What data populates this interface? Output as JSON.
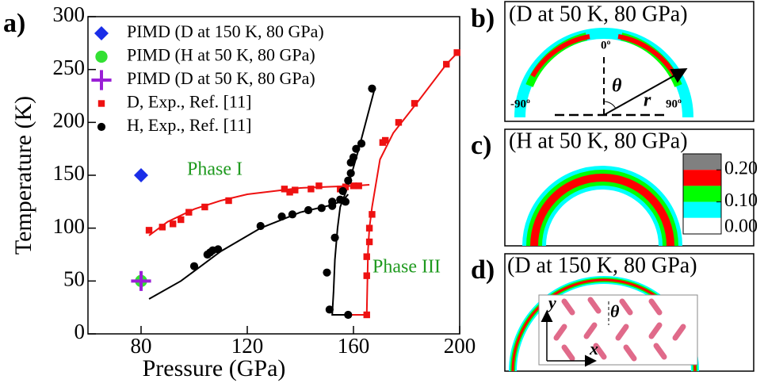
{
  "chart_data": {
    "type": "scatter",
    "panel_label": "a)",
    "xlabel": "Pressure (GPa)",
    "ylabel": "Temperature (K)",
    "xlim": [
      60,
      200
    ],
    "ylim": [
      0,
      300
    ],
    "xticks": [
      80,
      120,
      160,
      200
    ],
    "yticks": [
      0,
      50,
      100,
      150,
      200,
      250,
      300
    ],
    "annotations": [
      "Phase I",
      "Phase III"
    ],
    "annotation_color": "#1f9a1f",
    "series": [
      {
        "name": "PIMD (D at 150 K, 80 GPa)",
        "color": "#1a2ee8",
        "marker": "diamond",
        "x": [
          80
        ],
        "values": [
          150
        ]
      },
      {
        "name": "PIMD (H at 50 K, 80 GPa)",
        "color": "#33e033",
        "marker": "circle",
        "x": [
          80
        ],
        "values": [
          50
        ]
      },
      {
        "name": "PIMD (D at 50 K, 80 GPa)",
        "color": "#9a1fd6",
        "marker": "plus",
        "x": [
          80
        ],
        "values": [
          50
        ]
      },
      {
        "name": "D, Exp., Ref. [11]",
        "color": "#ee1111",
        "marker": "square",
        "x": [
          83,
          88,
          92,
          95,
          98,
          104,
          113,
          134,
          136,
          138,
          144,
          147,
          155,
          157,
          160,
          162,
          165,
          165,
          165,
          166,
          166,
          167,
          171,
          172,
          177,
          183,
          195,
          199
        ],
        "values": [
          98,
          101,
          104,
          108,
          115,
          120,
          126,
          137,
          134,
          136,
          137,
          140,
          137,
          139,
          140,
          140,
          18,
          55,
          73,
          87,
          100,
          113,
          181,
          183,
          200,
          218,
          255,
          266
        ]
      },
      {
        "name": "H, Exp., Ref. [11]",
        "color": "#000000",
        "marker": "circle",
        "x": [
          100,
          105,
          106,
          107,
          109,
          125,
          133,
          137,
          143,
          148,
          152,
          152,
          155,
          157,
          156,
          153,
          150,
          151,
          158,
          158,
          159,
          159,
          160,
          161,
          163,
          167
        ],
        "values": [
          64,
          75,
          77,
          79,
          80,
          102,
          111,
          113,
          117,
          119,
          121,
          125,
          127,
          125,
          135,
          91,
          58,
          23,
          18,
          145,
          152,
          162,
          167,
          175,
          180,
          232
        ]
      }
    ],
    "curves": [
      {
        "color": "#ee1111",
        "x": [
          83,
          90,
          100,
          110,
          120,
          130,
          140,
          150,
          160,
          166
        ],
        "values": [
          93,
          106,
          118,
          126,
          132,
          135,
          138,
          139,
          140,
          141
        ]
      },
      {
        "color": "#ee1111",
        "x": [
          158,
          165,
          165.5,
          166,
          167,
          170,
          175,
          185,
          195,
          200
        ],
        "values": [
          18,
          18,
          80,
          100,
          120,
          165,
          190,
          222,
          255,
          268
        ]
      },
      {
        "color": "#000000",
        "x": [
          83,
          95,
          110,
          125,
          140,
          152,
          156,
          158
        ],
        "values": [
          33,
          50,
          78,
          100,
          115,
          122,
          126,
          132
        ]
      },
      {
        "color": "#000000",
        "x": [
          158,
          152,
          152.5,
          153,
          154,
          155,
          158,
          162,
          168
        ],
        "values": [
          18,
          18,
          40,
          70,
          100,
          120,
          140,
          175,
          232
        ]
      }
    ]
  },
  "panels": [
    {
      "label": "b)",
      "title": "(D at 50 K, 80 GPa)",
      "annotations": [
        "0º",
        "-90º",
        "90º",
        "θ",
        "r"
      ]
    },
    {
      "label": "c)",
      "title": "(H at 50 K, 80 GPa)",
      "colorbar": {
        "clim": [
          0,
          0.25
        ],
        "colors": [
          "#808080",
          "#ff0000",
          "#00ff00",
          "#00ffff",
          "#ffffff"
        ],
        "ticks": [
          {
            "value": 0.2,
            "label": "0.20"
          },
          {
            "value": 0.1,
            "label": "0.10"
          },
          {
            "value": 0,
            "label": "0.00"
          }
        ]
      }
    },
    {
      "label": "d)",
      "title": "(D at 150 K, 80 GPa)",
      "annotations": [
        "y",
        "x",
        "θ"
      ]
    }
  ]
}
